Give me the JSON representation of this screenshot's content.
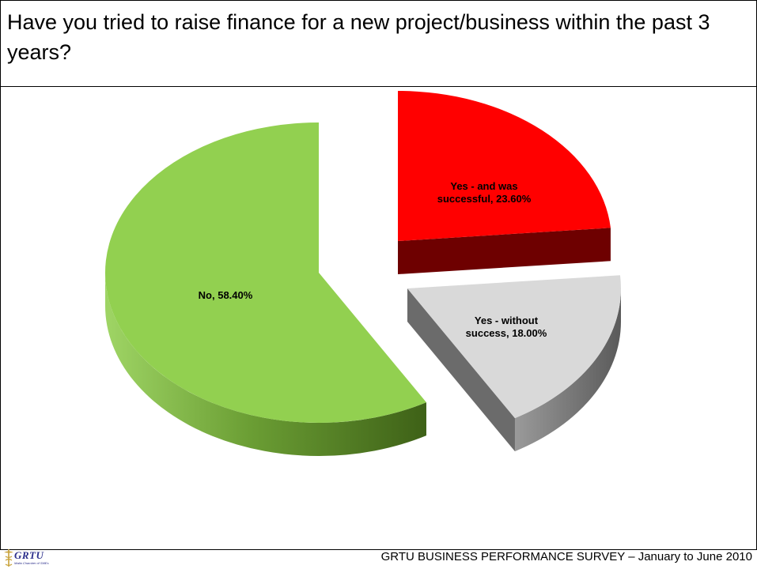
{
  "slide": {
    "title": "Have you tried to raise finance for a new project/business within the past 3 years?",
    "footer": "GRTU BUSINESS PERFORMANCE SURVEY – January to June 2010",
    "logo": {
      "wordmark": "GRTU",
      "tagline": "Malta Chamber of SMEs"
    }
  },
  "chart_data": {
    "type": "pie",
    "style": "3d-exploded",
    "title": "",
    "slices": [
      {
        "label": "Yes - and was successful",
        "value": 23.6,
        "display": "Yes - and was successful, 23.60%",
        "color": "#ff0000",
        "side_color": "#6e0000"
      },
      {
        "label": "Yes - without success",
        "value": 18.0,
        "display": "Yes - without success, 18.00%",
        "color": "#d9d9d9",
        "side_color": "#7a7a7a"
      },
      {
        "label": "No",
        "value": 58.4,
        "display": "No, 58.40%",
        "color": "#92d050",
        "side_color": "#4f7a27"
      }
    ]
  }
}
